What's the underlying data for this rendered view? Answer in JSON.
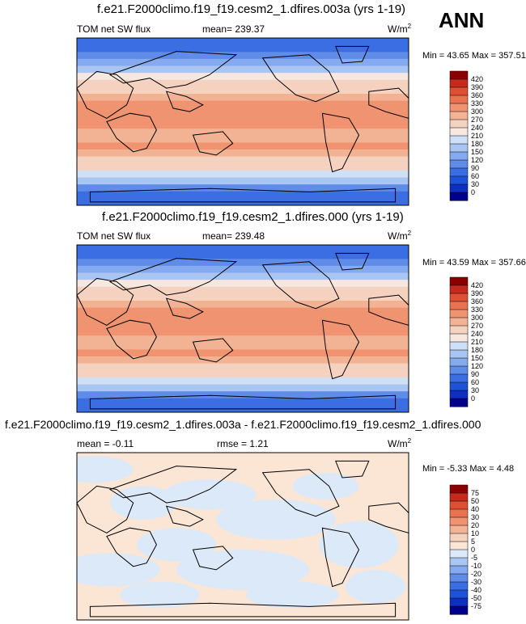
{
  "season": "ANN",
  "panels": [
    {
      "title": "f.e21.F2000climo.f19_f19.cesm2_1.dfires.003a (yrs 1-19)",
      "left_label": "TOM net SW flux",
      "stat_label": "mean=",
      "stat_value": "239.37",
      "units": "W/m",
      "units_sup": "2",
      "range_text": "Min =  43.65 Max = 357.51"
    },
    {
      "title": "f.e21.F2000climo.f19_f19.cesm2_1.dfires.000 (yrs 1-19)",
      "left_label": "TOM net SW flux",
      "stat_label": "mean=",
      "stat_value": "239.48",
      "units": "W/m",
      "units_sup": "2",
      "range_text": "Min =  43.59 Max = 357.66"
    },
    {
      "title": "f.e21.F2000climo.f19_f19.cesm2_1.dfires.003a - f.e21.F2000climo.f19_f19.cesm2_1.dfires.000",
      "left_label": "mean =   -0.11",
      "stat_label": "rmse =",
      "stat_value": "1.21",
      "units": "W/m",
      "units_sup": "2",
      "range_text": "Min =  -5.33 Max =   4.48"
    }
  ],
  "chart_data": [
    {
      "type": "heatmap",
      "title": "f.e21.F2000climo.f19_f19.cesm2_1.dfires.003a (yrs 1-19)",
      "variable": "TOM net SW flux",
      "mean": 239.37,
      "min": 43.65,
      "max": 357.51,
      "units": "W/m2",
      "levels": [
        0,
        30,
        60,
        90,
        120,
        150,
        180,
        210,
        240,
        270,
        300,
        330,
        360,
        390,
        420
      ],
      "colors": [
        "#00008b",
        "#0d2fc2",
        "#1f52d9",
        "#3a6ee2",
        "#5e8ce8",
        "#85aaee",
        "#a9c6f3",
        "#cde0f8",
        "#f6e8e0",
        "#f5d2bf",
        "#f2b394",
        "#ef9370",
        "#e97350",
        "#e04f33",
        "#c62a1c",
        "#8b0000"
      ],
      "rows": [
        60,
        75,
        110,
        140,
        175,
        215,
        245,
        265,
        280,
        300,
        315,
        320,
        305,
        290,
        295,
        300,
        285,
        265,
        240,
        200,
        150,
        110,
        80,
        65
      ]
    },
    {
      "type": "heatmap",
      "title": "f.e21.F2000climo.f19_f19.cesm2_1.dfires.000 (yrs 1-19)",
      "variable": "TOM net SW flux",
      "mean": 239.48,
      "min": 43.59,
      "max": 357.66,
      "units": "W/m2",
      "levels": [
        0,
        30,
        60,
        90,
        120,
        150,
        180,
        210,
        240,
        270,
        300,
        330,
        360,
        390,
        420
      ],
      "colors": [
        "#00008b",
        "#0d2fc2",
        "#1f52d9",
        "#3a6ee2",
        "#5e8ce8",
        "#85aaee",
        "#a9c6f3",
        "#cde0f8",
        "#f6e8e0",
        "#f5d2bf",
        "#f2b394",
        "#ef9370",
        "#e97350",
        "#e04f33",
        "#c62a1c",
        "#8b0000"
      ],
      "rows": [
        60,
        75,
        110,
        140,
        175,
        215,
        245,
        265,
        280,
        300,
        315,
        320,
        305,
        290,
        295,
        300,
        285,
        265,
        240,
        200,
        150,
        110,
        80,
        65
      ]
    },
    {
      "type": "heatmap",
      "title": "f.e21.F2000climo.f19_f19.cesm2_1.dfires.003a - f.e21.F2000climo.f19_f19.cesm2_1.dfires.000",
      "mean": -0.11,
      "rmse": 1.21,
      "min": -5.33,
      "max": 4.48,
      "units": "W/m2",
      "levels": [
        -75,
        -50,
        -40,
        -30,
        -20,
        -10,
        -5,
        0,
        5,
        10,
        20,
        30,
        40,
        50,
        75
      ],
      "colors": [
        "#00008b",
        "#0d2fc2",
        "#1f52d9",
        "#3a6ee2",
        "#5e8ce8",
        "#85aaee",
        "#a9c6f3",
        "#dce9f8",
        "#fbe6d6",
        "#f5d2bf",
        "#f2b394",
        "#ef9370",
        "#e97350",
        "#e04f33",
        "#c62a1c",
        "#8b0000"
      ],
      "rows": []
    }
  ],
  "colorbars": [
    {
      "labels": [
        "420",
        "390",
        "360",
        "330",
        "300",
        "270",
        "240",
        "210",
        "180",
        "150",
        "120",
        "90",
        "60",
        "30",
        "0"
      ]
    },
    {
      "labels": [
        "420",
        "390",
        "360",
        "330",
        "300",
        "270",
        "240",
        "210",
        "180",
        "150",
        "120",
        "90",
        "60",
        "30",
        "0"
      ]
    },
    {
      "labels": [
        "75",
        "50",
        "40",
        "30",
        "20",
        "10",
        "5",
        "0",
        "-5",
        "-10",
        "-20",
        "-30",
        "-40",
        "-50",
        "-75"
      ]
    }
  ]
}
